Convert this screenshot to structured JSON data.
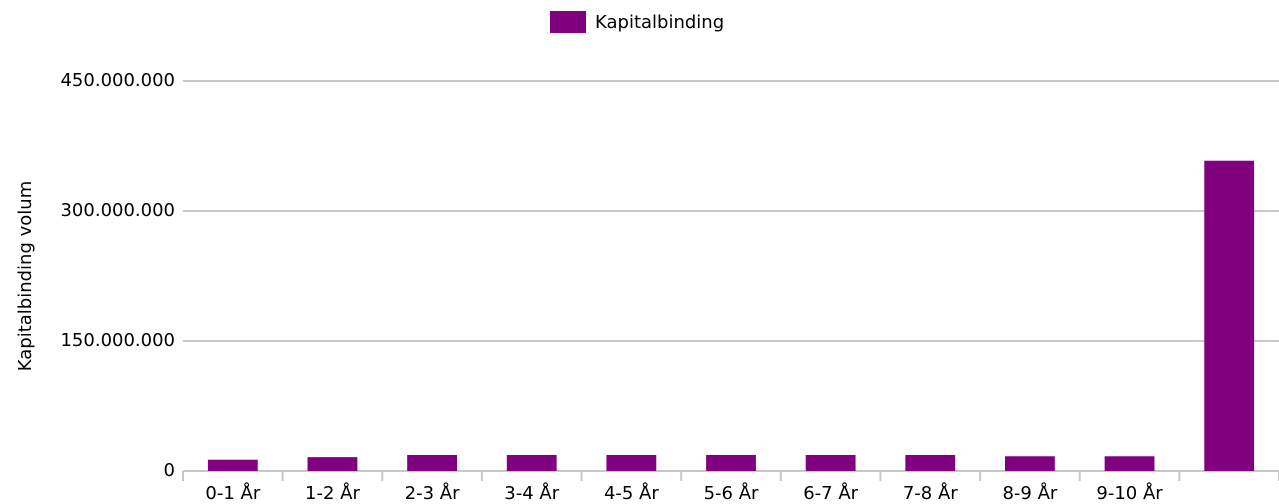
{
  "chart_data": {
    "type": "bar",
    "ylabel": "Kapitalbinding volum",
    "categories": [
      "0-1 År",
      "1-2 År",
      "2-3 År",
      "3-4 År",
      "4-5 År",
      "5-6 År",
      "6-7 År",
      "7-8 År",
      "8-9 År",
      "9-10 År",
      null
    ],
    "series": [
      {
        "name": "Kapitalbinding",
        "color": "#800080",
        "values": [
          13000000,
          16000000,
          18500000,
          18500000,
          18500000,
          18500000,
          18500000,
          18500000,
          17000000,
          17000000,
          358000000
        ]
      }
    ],
    "ylim": [
      0,
      450000000
    ],
    "yticks": [
      0,
      {
        "value": 150000000,
        "label": "150.000.000"
      },
      {
        "value": 300000000,
        "label": "300.000.000"
      },
      {
        "value": 450000000,
        "label": "450.000.000"
      }
    ],
    "grid": true,
    "legend": "top"
  }
}
